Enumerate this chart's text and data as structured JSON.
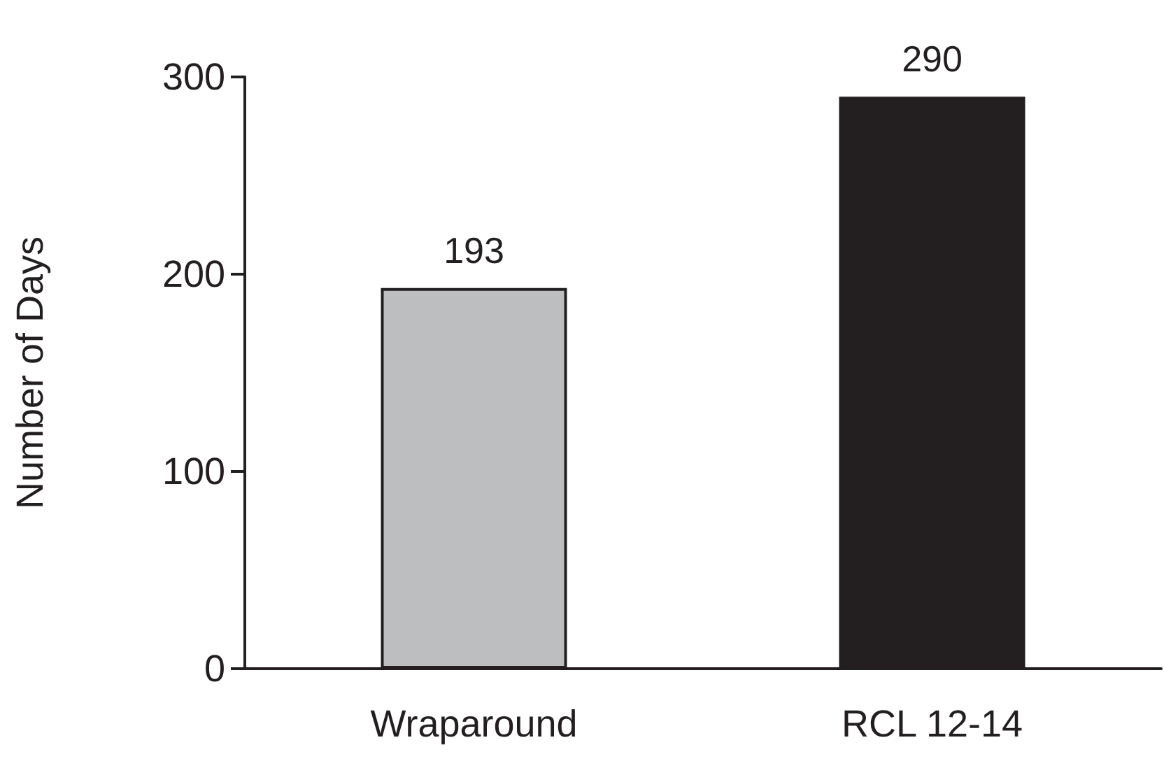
{
  "chart_data": {
    "type": "bar",
    "ylabel": "Number of Days",
    "categories": [
      "Wraparound",
      "RCL 12-14"
    ],
    "values": [
      193,
      290
    ],
    "colors": [
      "#bcbec0",
      "#231f20"
    ],
    "ylim": [
      0,
      300
    ],
    "yticks": [
      0,
      100,
      200,
      300
    ],
    "grid": false,
    "data_labels": true
  }
}
